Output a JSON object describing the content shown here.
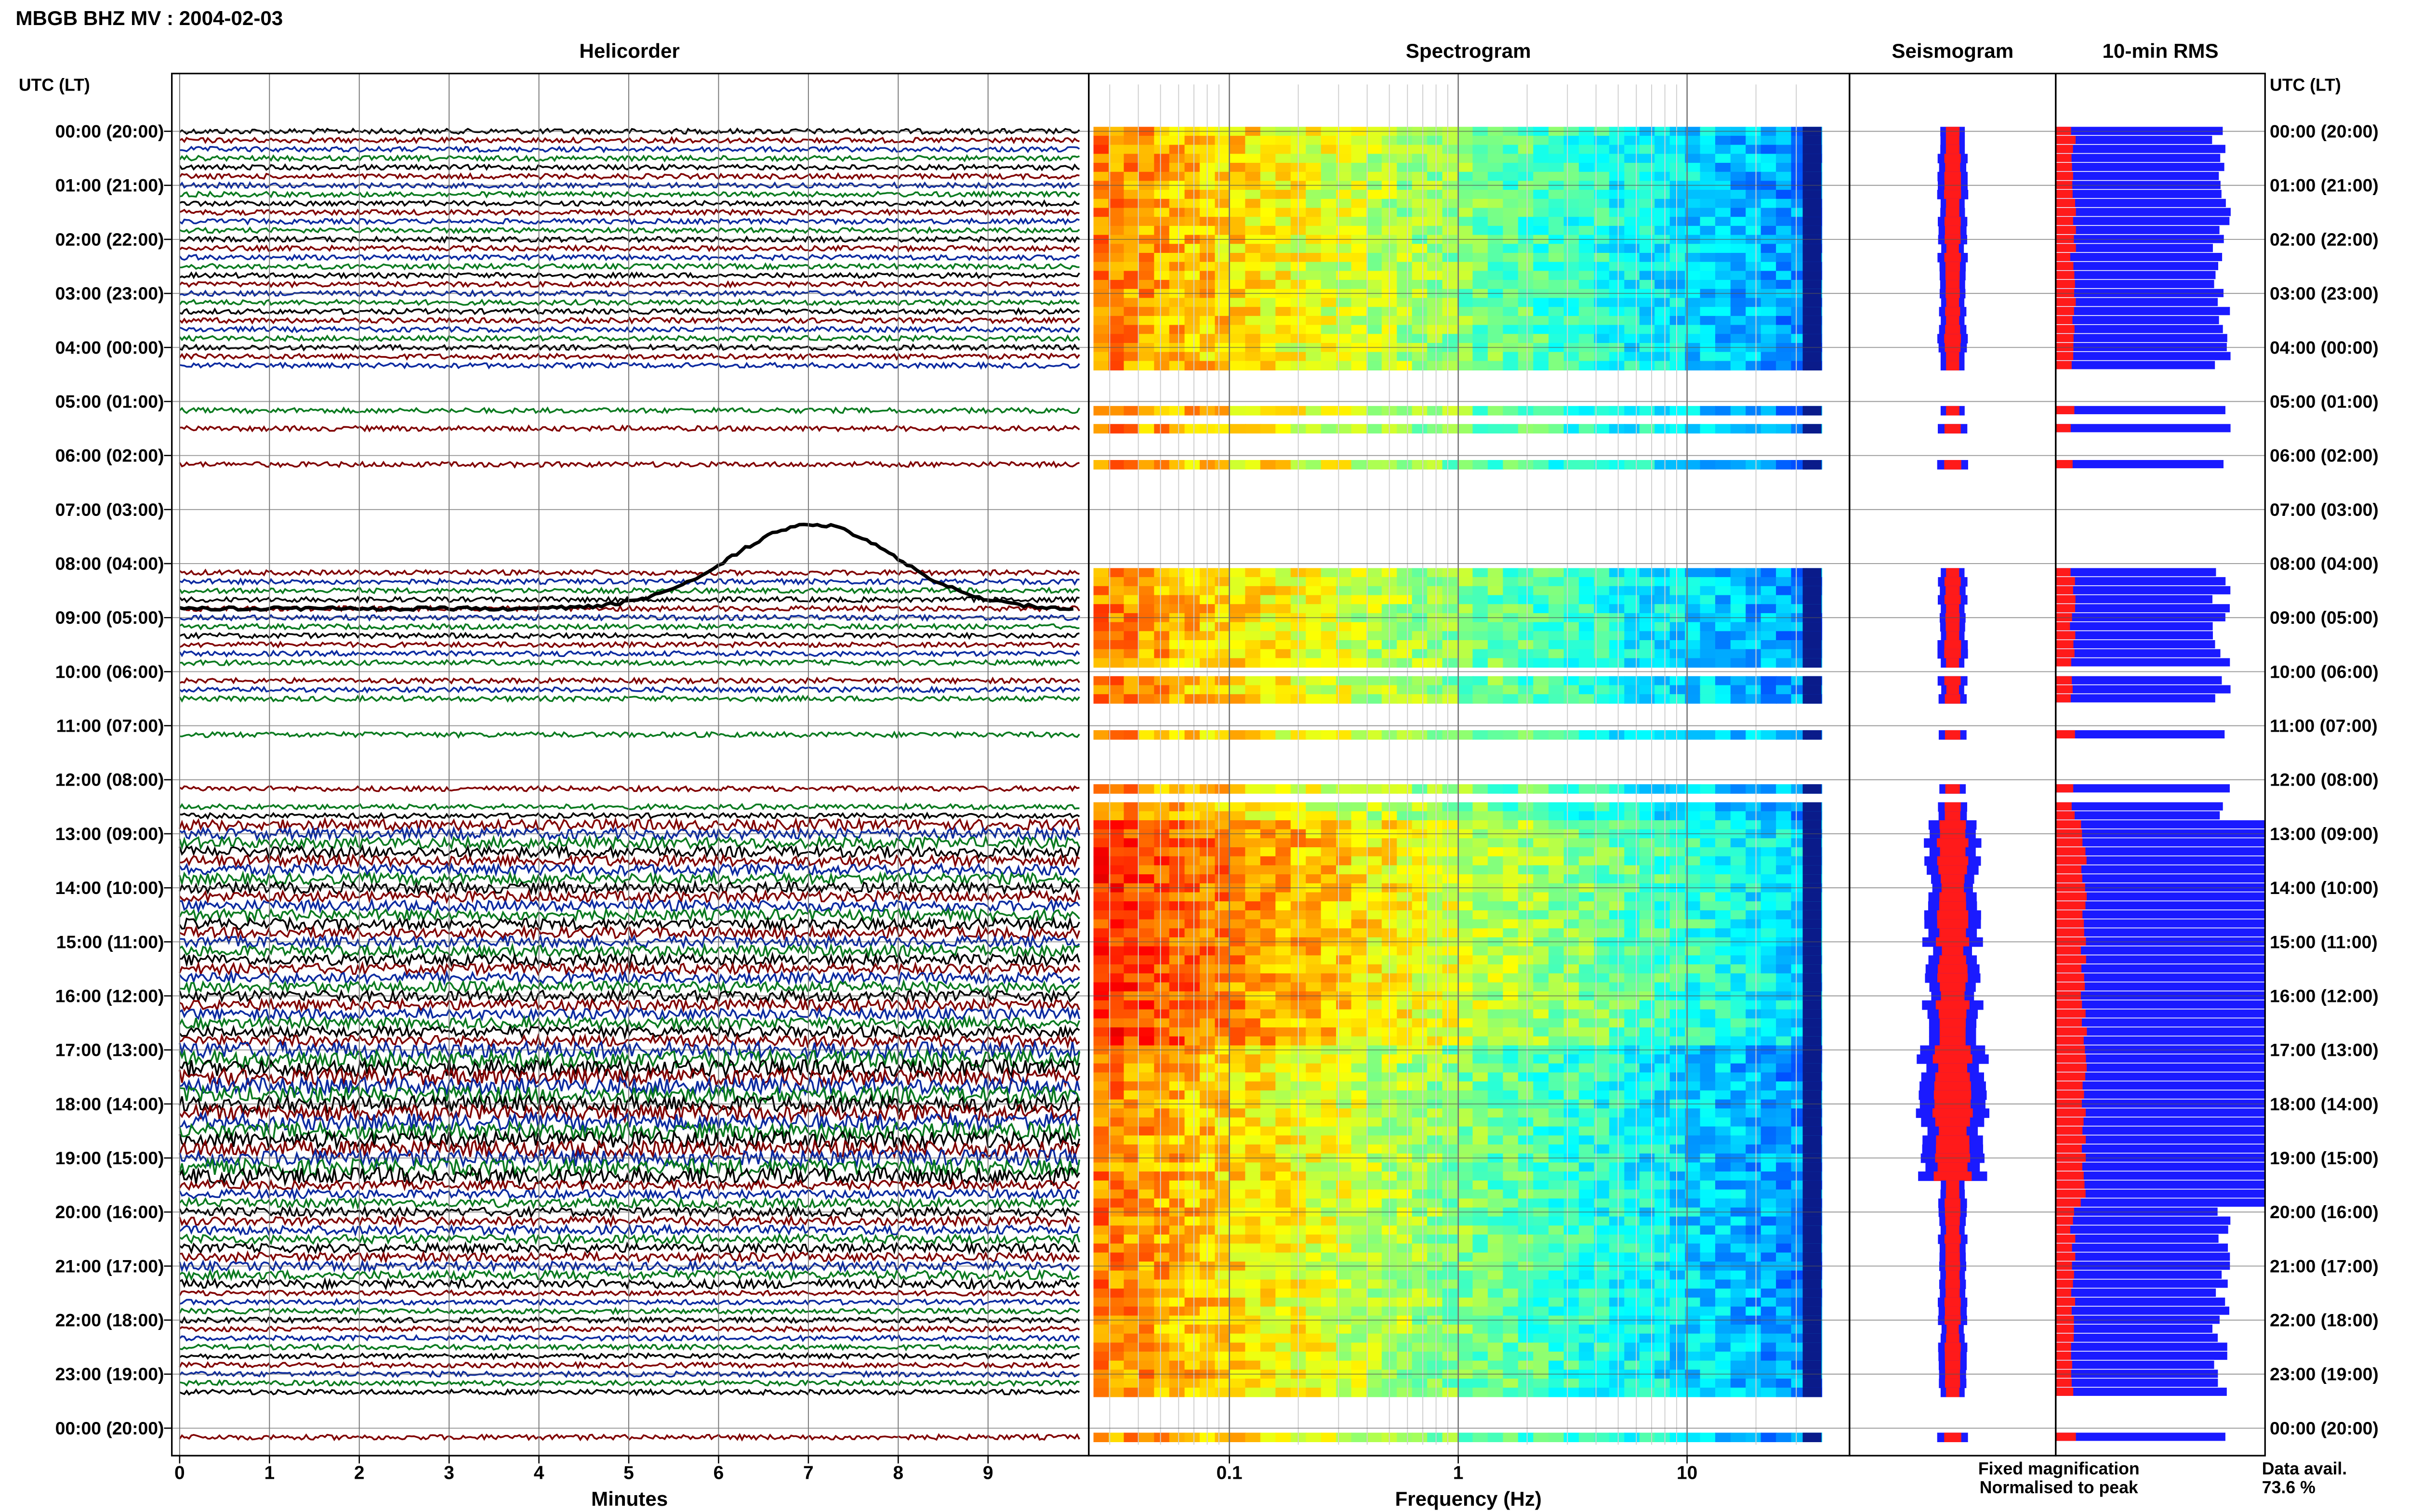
{
  "header": {
    "title": "MBGB BHZ MV : 2004-02-03"
  },
  "panels": {
    "helicorder": "Helicorder",
    "spectrogram": "Spectrogram",
    "seismogram": "Seismogram",
    "rms": "10-min RMS"
  },
  "axis_left_title": "UTC (LT)",
  "axis_right_title": "UTC (LT)",
  "legend": {
    "fixed": "Fixed magnification",
    "normalised": "Normalised to peak",
    "fixed_color": "#1a1aff",
    "normalised_color": "#ff1a1a"
  },
  "data_availability": {
    "label": "Data avail.",
    "value": "73.6 %"
  },
  "chart_data": {
    "type": "heatmap",
    "time_labels": [
      "00:00 (20:00)",
      "01:00 (21:00)",
      "02:00 (22:00)",
      "03:00 (23:00)",
      "04:00 (00:00)",
      "05:00 (01:00)",
      "06:00 (02:00)",
      "07:00 (03:00)",
      "08:00 (04:00)",
      "09:00 (05:00)",
      "10:00 (06:00)",
      "11:00 (07:00)",
      "12:00 (08:00)",
      "13:00 (09:00)",
      "14:00 (10:00)",
      "15:00 (11:00)",
      "16:00 (12:00)",
      "17:00 (13:00)",
      "18:00 (14:00)",
      "19:00 (15:00)",
      "20:00 (16:00)",
      "21:00 (17:00)",
      "22:00 (18:00)",
      "23:00 (19:00)",
      "00:00 (20:00)"
    ],
    "helicorder": {
      "xlabel": "Minutes",
      "xticks": [
        "0",
        "1",
        "2",
        "3",
        "4",
        "5",
        "6",
        "7",
        "8",
        "9"
      ],
      "trace_colors": [
        "#000000",
        "#800000",
        "#0b2aa0",
        "#0a7a1f"
      ]
    },
    "spectrogram": {
      "xlabel": "Frequency (Hz)",
      "xticks": [
        "0.1",
        "1",
        "10"
      ],
      "x_scale": "log"
    },
    "availability_10min": [
      1,
      1,
      1,
      1,
      1,
      1,
      1,
      1,
      1,
      1,
      1,
      1,
      1,
      1,
      1,
      1,
      1,
      1,
      1,
      1,
      1,
      1,
      1,
      1,
      1,
      1,
      1,
      0,
      0,
      0,
      0,
      1,
      0,
      1,
      0,
      0,
      0,
      1,
      0,
      0,
      0,
      0,
      0,
      0,
      0,
      0,
      0,
      0,
      0,
      1,
      1,
      1,
      1,
      1,
      1,
      1,
      1,
      1,
      1,
      1,
      0,
      1,
      1,
      1,
      0,
      0,
      0,
      1,
      0,
      0,
      0,
      0,
      0,
      1,
      0,
      1,
      1,
      1,
      1,
      1,
      1,
      1,
      1,
      1,
      1,
      1,
      1,
      1,
      1,
      1,
      1,
      1,
      1,
      1,
      1,
      1,
      1,
      1,
      1,
      1,
      1,
      1,
      1,
      1,
      1,
      1,
      1,
      1,
      1,
      1,
      1,
      1,
      1,
      1,
      1,
      1,
      1,
      1,
      1,
      1,
      1,
      1,
      1,
      1,
      1,
      1,
      1,
      1,
      1,
      1,
      1,
      1,
      1,
      1,
      1,
      1,
      1,
      1,
      1,
      1,
      1,
      0,
      0,
      0,
      0,
      1,
      0,
      0,
      0,
      0
    ]
  }
}
